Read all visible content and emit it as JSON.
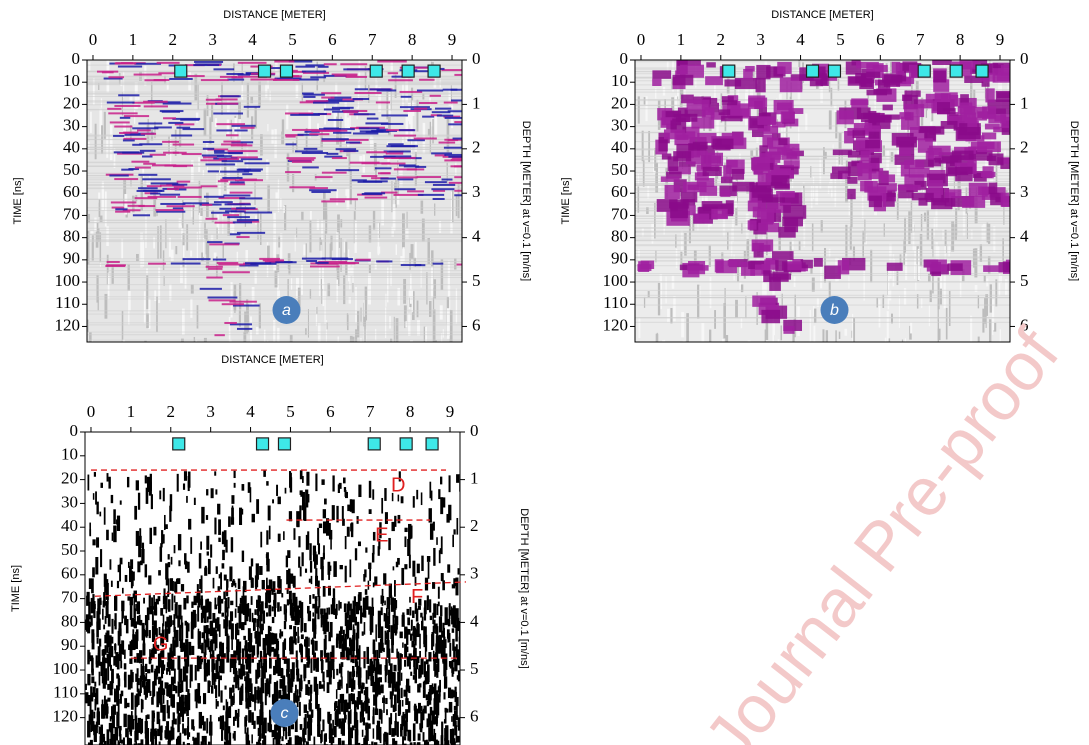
{
  "watermark": "Journal Pre-proof",
  "chart_data": [
    {
      "type": "radargram",
      "panel_label": "a",
      "color": [
        "#1c1ca8",
        "#c8208a"
      ],
      "background": "#e6e6e6",
      "xlabel": "DISTANCE [METER]",
      "ylabel": "TIME [ns]",
      "y2label": "DEPTH [METER] at v=0.1 [m/ns]",
      "xlim": [
        -0.15,
        9.25
      ],
      "xticks": [
        0,
        1,
        2,
        3,
        4,
        5,
        6,
        7,
        8,
        9
      ],
      "ylim": [
        0,
        127
      ],
      "yticks": [
        0,
        10,
        20,
        30,
        40,
        50,
        60,
        70,
        80,
        90,
        100,
        110,
        120
      ],
      "y2lim": [
        0,
        6.35
      ],
      "y2ticks": [
        0,
        1,
        2,
        3,
        4,
        5,
        6
      ],
      "markers_x": [
        2.2,
        4.3,
        4.85,
        7.1,
        7.9,
        8.55
      ],
      "markers_y": [
        5,
        5,
        5,
        5,
        5,
        5
      ]
    },
    {
      "type": "radargram",
      "panel_label": "b",
      "color": [
        "#8a0a8a",
        "#a020a0"
      ],
      "background": "#ececec",
      "xlabel": "DISTANCE [METER]",
      "ylabel": "TIME [ns]",
      "y2label": "DEPTH [METER] at v=0.1 [m/ns]",
      "xlim": [
        -0.15,
        9.25
      ],
      "xticks": [
        0,
        1,
        2,
        3,
        4,
        5,
        6,
        7,
        8,
        9
      ],
      "ylim": [
        0,
        127
      ],
      "yticks": [
        0,
        10,
        20,
        30,
        40,
        50,
        60,
        70,
        80,
        90,
        100,
        110,
        120
      ],
      "y2lim": [
        0,
        6.35
      ],
      "y2ticks": [
        0,
        1,
        2,
        3,
        4,
        5,
        6
      ],
      "markers_x": [
        2.2,
        4.3,
        4.85,
        7.1,
        7.9,
        8.55
      ],
      "markers_y": [
        5,
        5,
        5,
        5,
        5,
        5
      ]
    },
    {
      "type": "radargram",
      "panel_label": "c",
      "color": [
        "#000000",
        "#111111"
      ],
      "background": "#ffffff",
      "xlabel": "DISTANCE [METER]",
      "ylabel": "TIME [ns]",
      "y2label": "DEPTH [METER] at v=0.1 [m/ns]",
      "xlim": [
        -0.15,
        9.25
      ],
      "xticks": [
        0,
        1,
        2,
        3,
        4,
        5,
        6,
        7,
        8,
        9
      ],
      "ylim": [
        0,
        131.5
      ],
      "yticks": [
        0,
        10,
        20,
        30,
        40,
        50,
        60,
        70,
        80,
        90,
        100,
        110,
        120
      ],
      "y2lim": [
        0,
        6.575
      ],
      "y2ticks": [
        0,
        1,
        2,
        3,
        4,
        5,
        6
      ],
      "markers_x": [
        2.2,
        4.3,
        4.85,
        7.1,
        7.9,
        8.55
      ],
      "markers_y": [
        5,
        5,
        5,
        5,
        5,
        5
      ],
      "annotations": [
        {
          "label": "D",
          "x": [
            0,
            8.9
          ],
          "y": [
            16,
            16
          ]
        },
        {
          "label": "E",
          "x": [
            4.9,
            8.5
          ],
          "y": [
            37,
            37
          ]
        },
        {
          "label": "F",
          "x": [
            0.1,
            9.4
          ],
          "y": [
            69,
            63
          ]
        },
        {
          "label": "G",
          "x": [
            1.0,
            9.2
          ],
          "y": [
            95,
            95
          ]
        }
      ]
    }
  ]
}
